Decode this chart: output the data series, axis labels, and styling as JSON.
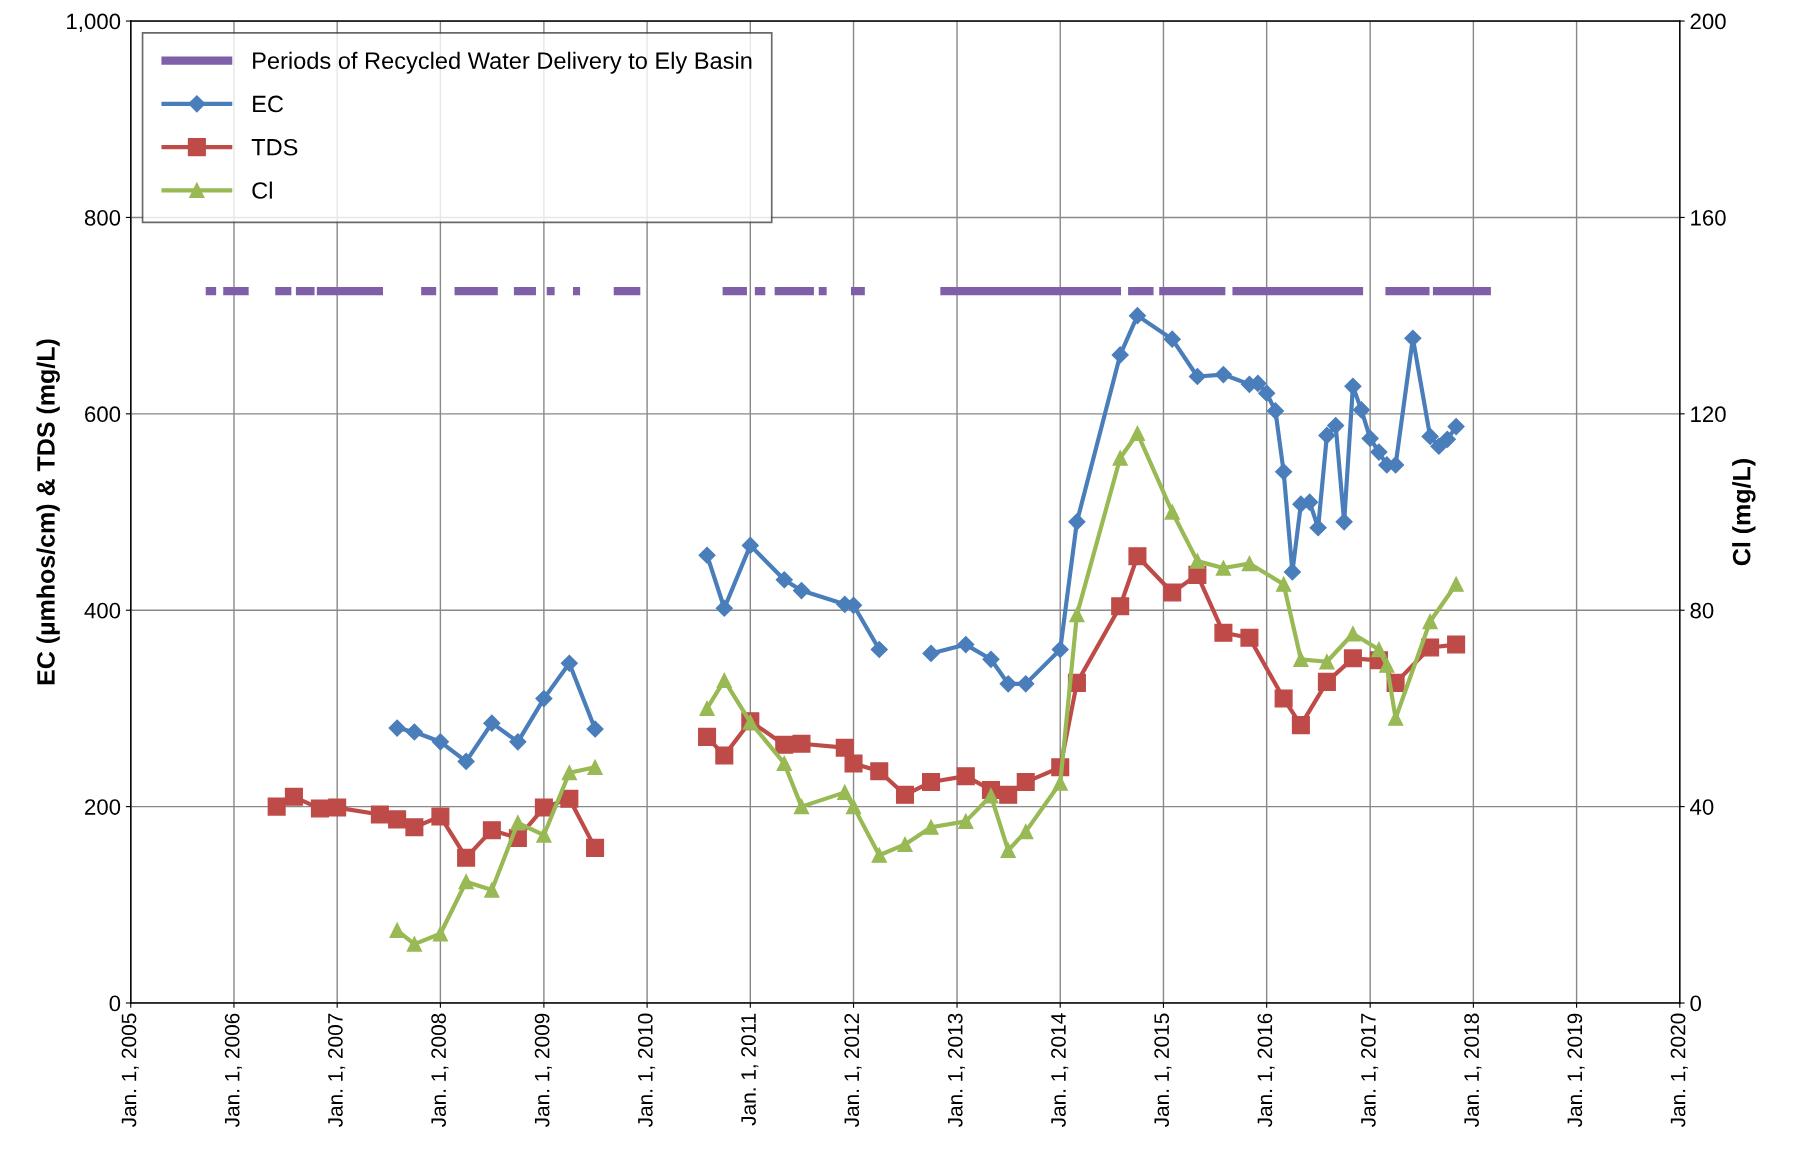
{
  "chart_data": {
    "type": "line",
    "ylabel": "EC (µmhos/cm) & TDS (mg/L)",
    "y2label": "Cl (mg/L)",
    "xlim": [
      "2005-01-01",
      "2020-01-01"
    ],
    "xticks": [
      {
        "value": "2005-01-01",
        "label": "Jan. 1, 2005"
      },
      {
        "value": "2006-01-01",
        "label": "Jan. 1, 2006"
      },
      {
        "value": "2007-01-01",
        "label": "Jan. 1, 2007"
      },
      {
        "value": "2008-01-01",
        "label": "Jan. 1, 2008"
      },
      {
        "value": "2009-01-01",
        "label": "Jan. 1, 2009"
      },
      {
        "value": "2010-01-01",
        "label": "Jan. 1, 2010"
      },
      {
        "value": "2011-01-01",
        "label": "Jan. 1, 2011"
      },
      {
        "value": "2012-01-01",
        "label": "Jan. 1, 2012"
      },
      {
        "value": "2013-01-01",
        "label": "Jan. 1, 2013"
      },
      {
        "value": "2014-01-01",
        "label": "Jan. 1, 2014"
      },
      {
        "value": "2015-01-01",
        "label": "Jan. 1, 2015"
      },
      {
        "value": "2016-01-01",
        "label": "Jan. 1, 2016"
      },
      {
        "value": "2017-01-01",
        "label": "Jan. 1, 2017"
      },
      {
        "value": "2018-01-01",
        "label": "Jan. 1, 2018"
      },
      {
        "value": "2019-01-01",
        "label": "Jan. 1, 2019"
      },
      {
        "value": "2020-01-01",
        "label": "Jan. 1, 2020"
      }
    ],
    "ylim": [
      0,
      1000
    ],
    "yticks": [
      0,
      200,
      400,
      600,
      800,
      {
        "value": 1000,
        "label": "1,000"
      }
    ],
    "y2lim": [
      0,
      200
    ],
    "y2ticks": [
      0,
      40,
      80,
      120,
      160,
      200
    ],
    "grid": true,
    "legend": "top left",
    "series": [
      {
        "name": "Periods of Recycled Water Delivery to Ely Basin",
        "color": "#7f5fa8",
        "marker": "none",
        "x": [
          "2005-09-23",
          "2005-10-30",
          "2005-11-10",
          "2005-11-24",
          "2006-02-22",
          "2006-04-01",
          "2006-05-27",
          "2006-07-23",
          "2006-07-30",
          "2006-08-08",
          "2006-10-13",
          "2006-10-17",
          "2006-10-21",
          "2007-06-12",
          "2007-08-01",
          "2007-10-25",
          "2007-12-17",
          "2008-01-15",
          "2008-02-20",
          "2008-07-22",
          "2008-08-20",
          "2008-09-17",
          "2008-12-04",
          "2008-12-20",
          "2009-01-11",
          "2009-02-08",
          "2009-03-10",
          "2009-04-14",
          "2009-05-09",
          "2009-07-01",
          "2009-09-05",
          "2009-12-08",
          "2010-05-01",
          "2010-09-25",
          "2010-12-20",
          "2011-01-05",
          "2011-01-17",
          "2011-02-23",
          "2011-03-10",
          "2011-03-28",
          "2011-08-14",
          "2011-08-22",
          "2011-08-31",
          "2011-09-28",
          "2011-11-01",
          "2011-12-23",
          "2012-02-10",
          "2012-06-01",
          "2012-11-03",
          "2014-08-04",
          "2014-08-16",
          "2014-08-29",
          "2014-11-27",
          "2014-12-07",
          "2014-12-17",
          "2015-08-08",
          "2015-08-20",
          "2015-09-02",
          "2016-12-07",
          "2017-01-15",
          "2017-02-24",
          "2017-07-30",
          "2017-08-05",
          "2017-08-11",
          "2018-03-04"
        ],
        "values": [
          725,
          725,
          null,
          725,
          725,
          null,
          725,
          725,
          null,
          725,
          725,
          null,
          725,
          725,
          null,
          725,
          725,
          null,
          725,
          725,
          null,
          725,
          725,
          null,
          725,
          725,
          null,
          725,
          725,
          null,
          725,
          725,
          null,
          725,
          725,
          null,
          725,
          725,
          null,
          725,
          725,
          null,
          725,
          725,
          null,
          725,
          725,
          null,
          725,
          725,
          null,
          725,
          725,
          null,
          725,
          725,
          null,
          725,
          725,
          null,
          725,
          725,
          null,
          725,
          725
        ]
      },
      {
        "name": "EC",
        "color": "#4a7ebb",
        "marker": "diamond",
        "x": [
          "2007-08",
          "2007-10",
          "2008-01",
          "2008-04",
          "2008-07",
          "2008-10",
          "2009-01",
          "2009-04",
          "2009-07",
          "2010-01",
          "2010-08",
          "2010-10",
          "2011-01",
          "2011-05",
          "2011-07",
          "2011-12",
          "2012-01",
          "2012-04",
          "2012-07",
          "2012-10",
          "2013-02",
          "2013-05",
          "2013-07",
          "2013-09",
          "2014-01",
          "2014-03",
          "2014-08",
          "2014-10",
          "2015-02",
          "2015-05",
          "2015-08",
          "2015-11",
          "2015-12",
          "2016-01",
          "2016-02",
          "2016-03",
          "2016-04",
          "2016-05",
          "2016-06",
          "2016-07",
          "2016-08",
          "2016-09",
          "2016-10",
          "2016-11",
          "2016-12",
          "2017-01",
          "2017-02",
          "2017-03",
          "2017-04",
          "2017-06",
          "2017-08",
          "2017-09",
          "2017-10",
          "2017-11"
        ],
        "values": [
          280,
          276,
          266,
          246,
          285,
          266,
          310,
          346,
          279,
          null,
          456,
          402,
          466,
          431,
          420,
          406,
          405,
          360,
          null,
          356,
          365,
          350,
          325,
          325,
          360,
          490,
          660,
          700,
          676,
          638,
          640,
          630,
          631,
          621,
          603,
          541,
          439,
          508,
          510,
          484,
          578,
          588,
          490,
          628,
          604,
          575,
          561,
          548,
          548,
          677,
          577,
          567,
          574,
          587
        ]
      },
      {
        "name": "TDS",
        "color": "#be4b48",
        "marker": "square",
        "x": [
          "2006-06",
          "2006-08",
          "2006-11",
          "2007-01",
          "2007-06",
          "2007-08",
          "2007-10",
          "2008-01",
          "2008-04",
          "2008-07",
          "2008-10",
          "2009-01",
          "2009-04",
          "2009-07",
          "2010-01",
          "2010-08",
          "2010-10",
          "2011-01",
          "2011-05",
          "2011-07",
          "2011-12",
          "2012-01",
          "2012-04",
          "2012-07",
          "2012-10",
          "2013-02",
          "2013-05",
          "2013-07",
          "2013-09",
          "2014-01",
          "2014-03",
          "2014-08",
          "2014-10",
          "2015-02",
          "2015-05",
          "2015-08",
          "2015-11",
          "2016-03",
          "2016-05",
          "2016-08",
          "2016-11",
          "2017-02",
          "2017-04",
          "2017-08",
          "2017-11"
        ],
        "values": [
          200,
          210,
          198,
          199,
          192,
          187,
          179,
          190,
          148,
          176,
          168,
          199,
          208,
          158,
          null,
          271,
          252,
          287,
          263,
          264,
          260,
          244,
          236,
          212,
          225,
          231,
          217,
          212,
          225,
          240,
          326,
          404,
          455,
          418,
          436,
          377,
          372,
          310,
          283,
          327,
          351,
          349,
          326,
          362,
          365
        ]
      },
      {
        "name": "Cl",
        "color": "#98b954",
        "marker": "triangle",
        "axis": "y2",
        "x": [
          "2007-08",
          "2007-10",
          "2008-01",
          "2008-04",
          "2008-07",
          "2008-10",
          "2009-01",
          "2009-04",
          "2009-07",
          "2010-01",
          "2010-08",
          "2010-10",
          "2011-01",
          "2011-05",
          "2011-07",
          "2011-12",
          "2012-01",
          "2012-04",
          "2012-07",
          "2012-10",
          "2013-02",
          "2013-05",
          "2013-07",
          "2013-09",
          "2014-01",
          "2014-03",
          "2014-08",
          "2014-10",
          "2015-02",
          "2015-05",
          "2015-08",
          "2015-11",
          "2016-03",
          "2016-05",
          "2016-08",
          "2016-11",
          "2017-02",
          "2017-03",
          "2017-04",
          "2017-08",
          "2017-11"
        ],
        "values": [
          14.8,
          12,
          14.1,
          24.7,
          23,
          36.7,
          34.2,
          46.9,
          48,
          null,
          60,
          65.7,
          57.2,
          48.8,
          40,
          42.9,
          40,
          30.1,
          32.3,
          35.8,
          37,
          42.2,
          31.1,
          34.9,
          44.8,
          79.1,
          111,
          116,
          100,
          90,
          88.6,
          89.5,
          85.3,
          70,
          69.5,
          75.2,
          72,
          68.8,
          58,
          77.7,
          85.3
        ]
      }
    ]
  }
}
